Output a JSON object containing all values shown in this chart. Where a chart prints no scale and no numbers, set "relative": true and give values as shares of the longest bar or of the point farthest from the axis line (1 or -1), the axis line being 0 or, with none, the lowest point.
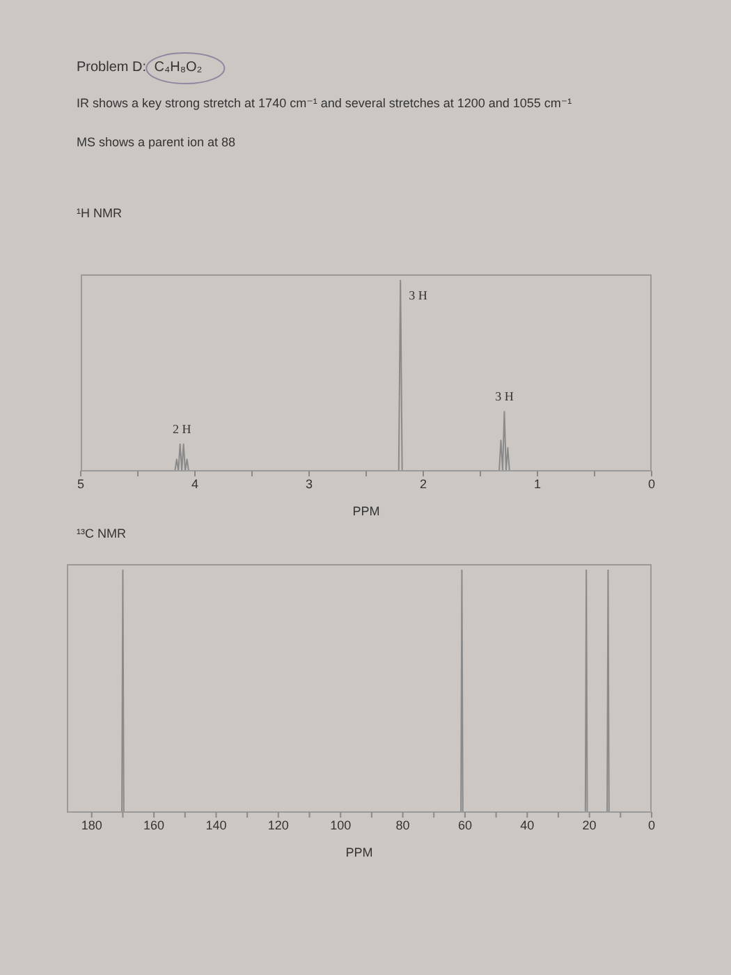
{
  "chart_data": [
    {
      "type": "other",
      "title": "Problem D: C₄H₈O₂",
      "annotations": [
        "IR shows a key strong stretch at 1740 cm⁻¹ and several stretches at 1200 and 1055 cm⁻¹",
        "MS shows a parent ion at 88"
      ]
    },
    {
      "type": "line",
      "title": "¹H NMR",
      "xlabel": "PPM",
      "relative": true,
      "color": "#8a8a8a",
      "x": [
        5,
        4.175,
        4.16,
        4.145,
        4.13,
        4.115,
        4.1,
        4.085,
        4.07,
        4.055,
        2.215,
        2.2,
        2.185,
        1.335,
        1.32,
        1.305,
        1.29,
        1.275,
        1.26,
        1.245,
        0
      ],
      "values": [
        0,
        0,
        0.06,
        0,
        0.14,
        0,
        0.14,
        0,
        0.06,
        0,
        0,
        1,
        0,
        0,
        0.16,
        0,
        0.31,
        0,
        0.12,
        0,
        0
      ],
      "xlim": [
        5,
        0
      ],
      "xticks": [
        5,
        {
          "value": 4.5,
          "label": null
        },
        4,
        {
          "value": 3.5,
          "label": null
        },
        3,
        {
          "value": 2.5,
          "label": null
        },
        2,
        {
          "value": 1.5,
          "label": null
        },
        1,
        {
          "value": 0.5,
          "label": null
        },
        0
      ],
      "annotations": [
        {
          "text": "2 H",
          "x": 4.115,
          "y": 0.14
        },
        {
          "text": "3 H",
          "x": 2.2,
          "y": 1
        },
        {
          "text": "3 H",
          "x": 1.29,
          "y": 0.31
        }
      ]
    },
    {
      "type": "line",
      "title": "¹³C NMR",
      "xlabel": "PPM",
      "relative": true,
      "color": "#8a8a8a",
      "x": [
        188,
        170.3,
        170,
        169.7,
        61.3,
        61,
        60.7,
        21.3,
        21,
        20.7,
        14.3,
        14,
        13.7,
        0
      ],
      "values": [
        0,
        0,
        1,
        0,
        0,
        1,
        0,
        0,
        1,
        0,
        0,
        1,
        0,
        0
      ],
      "xlim": [
        188,
        0
      ],
      "xticks": [
        180,
        {
          "value": 170,
          "label": null
        },
        160,
        {
          "value": 150,
          "label": null
        },
        140,
        {
          "value": 130,
          "label": null
        },
        120,
        {
          "value": 110,
          "label": null
        },
        100,
        {
          "value": 90,
          "label": null
        },
        80,
        {
          "value": 70,
          "label": null
        },
        60,
        {
          "value": 50,
          "label": null
        },
        40,
        {
          "value": 30,
          "label": null
        },
        20,
        {
          "value": 10,
          "label": null
        },
        0
      ]
    }
  ]
}
